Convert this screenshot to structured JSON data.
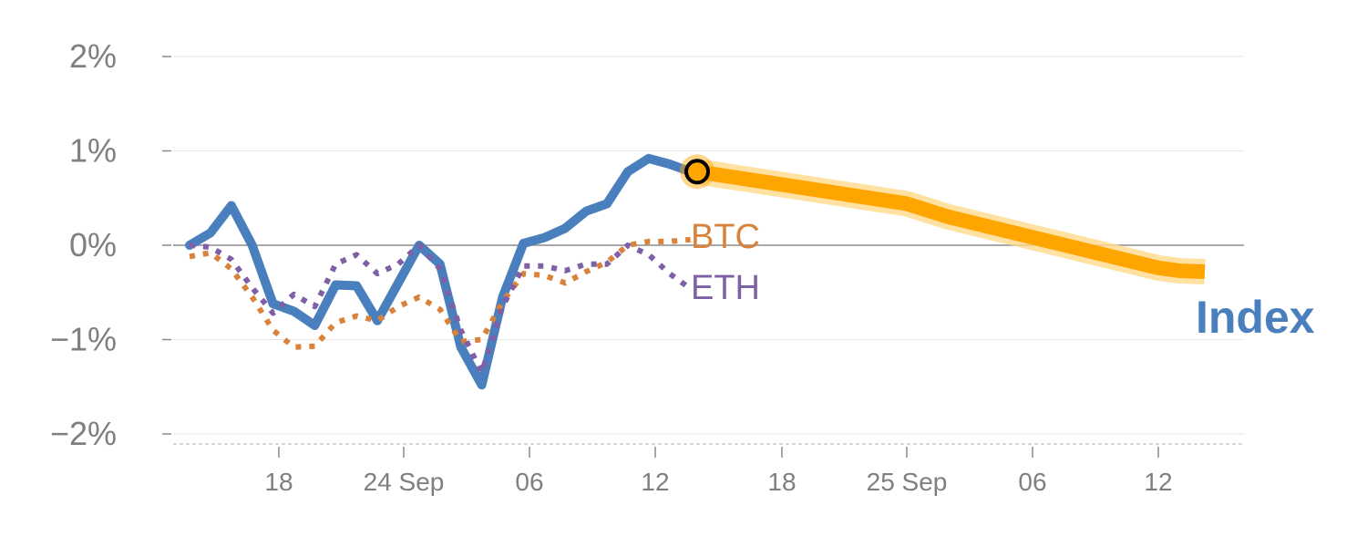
{
  "chart_data": {
    "type": "line",
    "title": "",
    "xlabel": "",
    "ylabel": "",
    "ylim": [
      -2,
      2
    ],
    "yticks": [
      {
        "value": 2,
        "label": "2%"
      },
      {
        "value": 1,
        "label": "1%"
      },
      {
        "value": 0,
        "label": "0%"
      },
      {
        "value": -1,
        "label": "−1%"
      },
      {
        "value": -2,
        "label": "−2%"
      }
    ],
    "x_domain": [
      "2023-09-13",
      "2023-10-16"
    ],
    "xticks": [
      {
        "date": "2023-09-18",
        "label": "18"
      },
      {
        "date": "2023-09-24",
        "label": "24 Sep"
      },
      {
        "date": "2023-10-06",
        "label": "06"
      },
      {
        "date": "2023-10-12",
        "label": "12"
      }
    ],
    "xticks_secondary": [
      {
        "date": "2023-09-18",
        "label": "18"
      },
      {
        "date": "2023-09-25",
        "label": "25 Sep"
      },
      {
        "date": "2023-10-06",
        "label": "06"
      },
      {
        "date": "2023-10-12",
        "label": "12"
      }
    ],
    "series": [
      {
        "name": "Index",
        "color": "#4a7fbe",
        "style": "solid",
        "points": [
          [
            "2023-09-14",
            0.0
          ],
          [
            "2023-09-15",
            0.13
          ],
          [
            "2023-09-16",
            0.42
          ],
          [
            "2023-09-17",
            0.0
          ],
          [
            "2023-09-18",
            -0.62
          ],
          [
            "2023-09-19",
            -0.7
          ],
          [
            "2023-09-20",
            -0.85
          ],
          [
            "2023-09-21",
            -0.42
          ],
          [
            "2023-09-22",
            -0.43
          ],
          [
            "2023-09-23",
            -0.8
          ],
          [
            "2023-09-24",
            -0.4
          ],
          [
            "2023-09-25",
            0.0
          ],
          [
            "2023-09-26",
            -0.2
          ],
          [
            "2023-09-27",
            -1.08
          ],
          [
            "2023-09-28",
            -1.48
          ],
          [
            "2023-09-29",
            -0.55
          ],
          [
            "2023-09-30",
            0.02
          ],
          [
            "2023-10-01",
            0.08
          ],
          [
            "2023-10-02",
            0.18
          ],
          [
            "2023-10-03",
            0.36
          ],
          [
            "2023-10-04",
            0.44
          ],
          [
            "2023-10-05",
            0.78
          ],
          [
            "2023-10-06",
            0.92
          ],
          [
            "2023-10-07",
            0.86
          ],
          [
            "2023-10-08",
            0.78
          ]
        ]
      },
      {
        "name": "BTC",
        "color": "#d9823b",
        "style": "dotted",
        "points": [
          [
            "2023-09-14",
            -0.12
          ],
          [
            "2023-09-15",
            -0.08
          ],
          [
            "2023-09-16",
            -0.25
          ],
          [
            "2023-09-17",
            -0.55
          ],
          [
            "2023-09-18",
            -0.9
          ],
          [
            "2023-09-19",
            -1.08
          ],
          [
            "2023-09-20",
            -1.07
          ],
          [
            "2023-09-21",
            -0.82
          ],
          [
            "2023-09-22",
            -0.75
          ],
          [
            "2023-09-23",
            -0.8
          ],
          [
            "2023-09-24",
            -0.65
          ],
          [
            "2023-09-25",
            -0.55
          ],
          [
            "2023-09-26",
            -0.68
          ],
          [
            "2023-09-27",
            -1.02
          ],
          [
            "2023-09-28",
            -1.0
          ],
          [
            "2023-09-29",
            -0.6
          ],
          [
            "2023-09-30",
            -0.3
          ],
          [
            "2023-10-01",
            -0.32
          ],
          [
            "2023-10-02",
            -0.4
          ],
          [
            "2023-10-03",
            -0.28
          ],
          [
            "2023-10-04",
            -0.18
          ],
          [
            "2023-10-05",
            0.0
          ],
          [
            "2023-10-06",
            0.04
          ],
          [
            "2023-10-07",
            0.04
          ],
          [
            "2023-10-08",
            0.06
          ]
        ]
      },
      {
        "name": "ETH",
        "color": "#7f5fa6",
        "style": "dotted",
        "points": [
          [
            "2023-09-14",
            0.0
          ],
          [
            "2023-09-15",
            -0.02
          ],
          [
            "2023-09-16",
            -0.15
          ],
          [
            "2023-09-17",
            -0.45
          ],
          [
            "2023-09-18",
            -0.72
          ],
          [
            "2023-09-19",
            -0.52
          ],
          [
            "2023-09-20",
            -0.65
          ],
          [
            "2023-09-21",
            -0.2
          ],
          [
            "2023-09-22",
            -0.1
          ],
          [
            "2023-09-23",
            -0.3
          ],
          [
            "2023-09-24",
            -0.2
          ],
          [
            "2023-09-25",
            0.0
          ],
          [
            "2023-09-26",
            -0.25
          ],
          [
            "2023-09-27",
            -0.9
          ],
          [
            "2023-09-28",
            -1.35
          ],
          [
            "2023-09-29",
            -0.65
          ],
          [
            "2023-09-30",
            -0.22
          ],
          [
            "2023-10-01",
            -0.22
          ],
          [
            "2023-10-02",
            -0.27
          ],
          [
            "2023-10-03",
            -0.2
          ],
          [
            "2023-10-04",
            -0.2
          ],
          [
            "2023-10-05",
            0.0
          ],
          [
            "2023-10-06",
            -0.1
          ],
          [
            "2023-10-07",
            -0.3
          ],
          [
            "2023-10-08",
            -0.46
          ]
        ]
      },
      {
        "name": "Index",
        "color": "#ffa500",
        "style": "forecast",
        "points": [
          [
            "2023-10-08",
            0.78
          ],
          [
            "2023-10-18",
            0.44
          ],
          [
            "2023-10-19",
            0.37
          ],
          [
            "2023-10-20",
            0.3
          ],
          [
            "2023-10-25",
            0.03
          ],
          [
            "2023-10-30",
            -0.24
          ],
          [
            "2023-10-31",
            -0.27
          ],
          [
            "2023-11-01",
            -0.28
          ]
        ]
      }
    ],
    "marker": {
      "date": "2023-10-08",
      "value": 0.78
    }
  },
  "labels": {
    "btc": "BTC",
    "eth": "ETH",
    "index": "Index"
  }
}
